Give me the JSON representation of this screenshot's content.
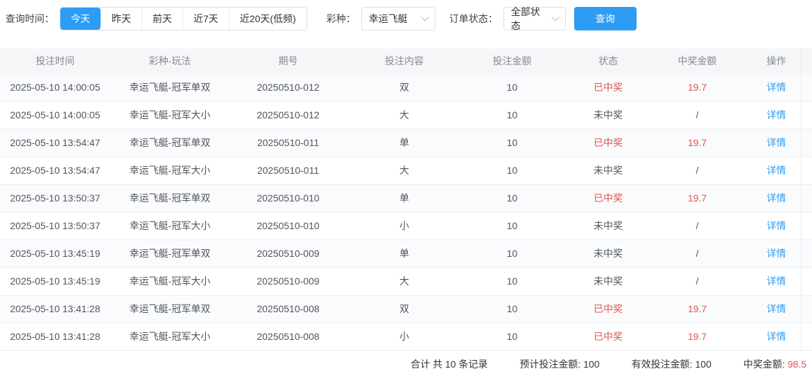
{
  "filters": {
    "time_label": "查询时间：",
    "time_options": [
      {
        "label": "今天",
        "active": true
      },
      {
        "label": "昨天",
        "active": false
      },
      {
        "label": "前天",
        "active": false
      },
      {
        "label": "近7天",
        "active": false
      },
      {
        "label": "近20天(低频)",
        "active": false
      }
    ],
    "lottery_label": "彩种：",
    "lottery_value": "幸运飞艇",
    "status_label": "订单状态：",
    "status_value": "全部状态",
    "search_button": "查询"
  },
  "table": {
    "columns": [
      "投注时间",
      "彩种-玩法",
      "期号",
      "投注内容",
      "投注金额",
      "状态",
      "中奖金额",
      "操作"
    ],
    "action_label": "详情",
    "rows": [
      {
        "time": "2025-05-10 14:00:05",
        "game": "幸运飞艇-冠军单双",
        "issue": "20250510-012",
        "content": "双",
        "amount": "10",
        "status": "已中奖",
        "won": true,
        "prize": "19.7"
      },
      {
        "time": "2025-05-10 14:00:05",
        "game": "幸运飞艇-冠军大小",
        "issue": "20250510-012",
        "content": "大",
        "amount": "10",
        "status": "未中奖",
        "won": false,
        "prize": "/"
      },
      {
        "time": "2025-05-10 13:54:47",
        "game": "幸运飞艇-冠军单双",
        "issue": "20250510-011",
        "content": "单",
        "amount": "10",
        "status": "已中奖",
        "won": true,
        "prize": "19.7"
      },
      {
        "time": "2025-05-10 13:54:47",
        "game": "幸运飞艇-冠军大小",
        "issue": "20250510-011",
        "content": "大",
        "amount": "10",
        "status": "未中奖",
        "won": false,
        "prize": "/"
      },
      {
        "time": "2025-05-10 13:50:37",
        "game": "幸运飞艇-冠军单双",
        "issue": "20250510-010",
        "content": "单",
        "amount": "10",
        "status": "已中奖",
        "won": true,
        "prize": "19.7"
      },
      {
        "time": "2025-05-10 13:50:37",
        "game": "幸运飞艇-冠军大小",
        "issue": "20250510-010",
        "content": "小",
        "amount": "10",
        "status": "未中奖",
        "won": false,
        "prize": "/"
      },
      {
        "time": "2025-05-10 13:45:19",
        "game": "幸运飞艇-冠军单双",
        "issue": "20250510-009",
        "content": "单",
        "amount": "10",
        "status": "未中奖",
        "won": false,
        "prize": "/"
      },
      {
        "time": "2025-05-10 13:45:19",
        "game": "幸运飞艇-冠军大小",
        "issue": "20250510-009",
        "content": "大",
        "amount": "10",
        "status": "未中奖",
        "won": false,
        "prize": "/"
      },
      {
        "time": "2025-05-10 13:41:28",
        "game": "幸运飞艇-冠军单双",
        "issue": "20250510-008",
        "content": "双",
        "amount": "10",
        "status": "已中奖",
        "won": true,
        "prize": "19.7"
      },
      {
        "time": "2025-05-10 13:41:28",
        "game": "幸运飞艇-冠军大小",
        "issue": "20250510-008",
        "content": "小",
        "amount": "10",
        "status": "已中奖",
        "won": true,
        "prize": "19.7"
      }
    ]
  },
  "summary": {
    "total_text": "合计 共 10 条记录",
    "expected_label": "预计投注金额:",
    "expected_value": "100",
    "valid_label": "有效投注金额:",
    "valid_value": "100",
    "prize_label": "中奖金额:",
    "prize_value": "98.5"
  },
  "colors": {
    "primary": "#2d9cf4",
    "danger": "#dd544c"
  }
}
